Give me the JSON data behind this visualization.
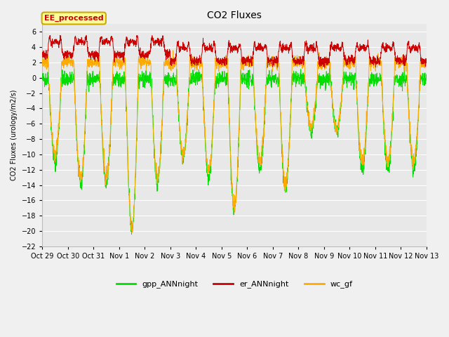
{
  "title": "CO2 Fluxes",
  "ylabel": "CO2 Fluxes (urology/m2/s)",
  "ylim": [
    -22,
    7
  ],
  "yticks": [
    -22,
    -20,
    -18,
    -16,
    -14,
    -12,
    -10,
    -8,
    -6,
    -4,
    -2,
    0,
    2,
    4,
    6
  ],
  "fig_bg": "#f0f0f0",
  "plot_bg": "#e8e8e8",
  "grid_color": "#ffffff",
  "legend_label_box": "EE_processed",
  "legend_box_facecolor": "#ffff99",
  "legend_box_edgecolor": "#ccaa00",
  "colors": {
    "gpp_ANNnight": "#00dd00",
    "er_ANNnight": "#cc0000",
    "wc_gf": "#ffaa00"
  },
  "x_tick_labels": [
    "Oct 29",
    "Oct 30",
    "Oct 31",
    "Nov 1",
    "Nov 2",
    "Nov 3",
    "Nov 4",
    "Nov 5",
    "Nov 6",
    "Nov 7",
    "Nov 8",
    "Nov 9",
    "Nov 10",
    "Nov 11",
    "Nov 12",
    "Nov 13"
  ],
  "n_days": 15,
  "points_per_day": 144,
  "title_fontsize": 10,
  "label_fontsize": 7,
  "tick_fontsize": 7,
  "legend_fontsize": 8,
  "linewidth": 0.7,
  "gpp_depths": [
    -11,
    -14,
    -14,
    -19.8,
    -13.5,
    -10.5,
    -13,
    -17.3,
    -12,
    -14.5,
    -7,
    -7,
    -12,
    -12,
    -12
  ],
  "wc_depths": [
    -10,
    -13,
    -13,
    -19.5,
    -13.0,
    -10.0,
    -12,
    -16.8,
    -11,
    -14.0,
    -6.5,
    -6.5,
    -11,
    -11,
    -11
  ],
  "er_base": 2.2,
  "er_peak": 1.8,
  "wc_base_positive": 2.0,
  "er_day_boost_early": 0.8
}
